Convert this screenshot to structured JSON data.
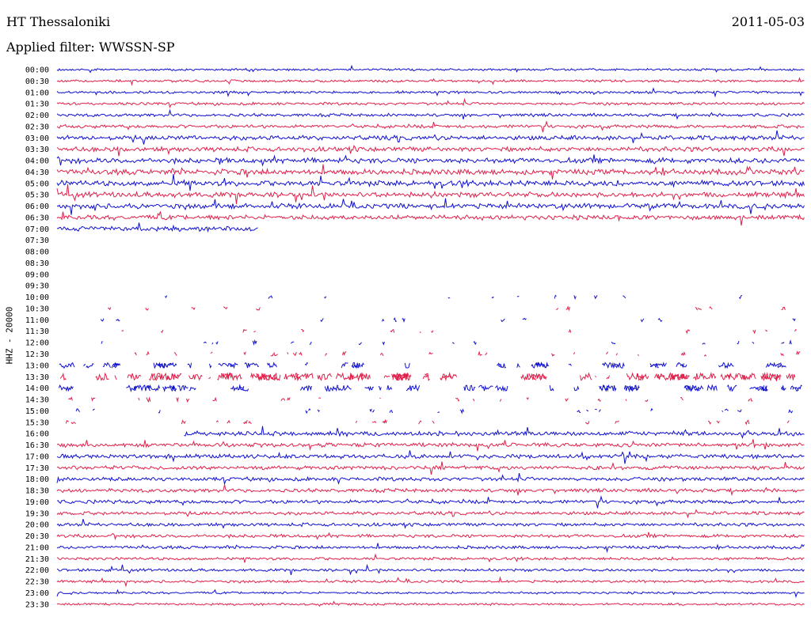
{
  "header": {
    "station": "HT Thessaloniki",
    "date": "2011-05-03",
    "filter": "Applied filter: WWSSN-SP",
    "channel": "HHZ - 20000"
  },
  "colors": {
    "even_trace": "#1010d0",
    "odd_trace": "#e0204a"
  },
  "chart_data": {
    "type": "line",
    "title": "HT Thessaloniki",
    "subtitle": "Applied filter: WWSSN-SP",
    "ylabel": "HHZ - 20000",
    "xlabel": "",
    "ylim": [
      "00:00",
      "23:30"
    ],
    "grid": false,
    "rows": [
      {
        "label": "00:00",
        "status": "continuous",
        "activity": 0.15,
        "coverage": [
          0,
          1
        ]
      },
      {
        "label": "00:30",
        "status": "continuous",
        "activity": 0.2,
        "coverage": [
          0,
          1
        ]
      },
      {
        "label": "01:00",
        "status": "continuous",
        "activity": 0.2,
        "coverage": [
          0,
          1
        ]
      },
      {
        "label": "01:30",
        "status": "continuous",
        "activity": 0.25,
        "coverage": [
          0,
          1
        ]
      },
      {
        "label": "02:00",
        "status": "continuous",
        "activity": 0.3,
        "coverage": [
          0,
          1
        ]
      },
      {
        "label": "02:30",
        "status": "continuous",
        "activity": 0.35,
        "coverage": [
          0,
          1
        ]
      },
      {
        "label": "03:00",
        "status": "continuous",
        "activity": 0.55,
        "coverage": [
          0,
          1
        ]
      },
      {
        "label": "03:30",
        "status": "continuous",
        "activity": 0.6,
        "coverage": [
          0,
          1
        ]
      },
      {
        "label": "04:00",
        "status": "continuous",
        "activity": 0.7,
        "coverage": [
          0,
          1
        ]
      },
      {
        "label": "04:30",
        "status": "continuous",
        "activity": 0.75,
        "coverage": [
          0,
          1
        ]
      },
      {
        "label": "05:00",
        "status": "continuous",
        "activity": 0.7,
        "coverage": [
          0,
          1
        ]
      },
      {
        "label": "05:30",
        "status": "continuous",
        "activity": 0.7,
        "coverage": [
          0,
          1
        ]
      },
      {
        "label": "06:00",
        "status": "continuous",
        "activity": 0.65,
        "coverage": [
          0,
          1
        ]
      },
      {
        "label": "06:30",
        "status": "continuous",
        "activity": 0.6,
        "coverage": [
          0,
          1
        ]
      },
      {
        "label": "07:00",
        "status": "partial",
        "activity": 0.6,
        "coverage": [
          0,
          0.27
        ]
      },
      {
        "label": "07:30",
        "status": "empty",
        "activity": 0,
        "coverage": [
          0,
          0
        ]
      },
      {
        "label": "08:00",
        "status": "empty",
        "activity": 0,
        "coverage": [
          0,
          0
        ]
      },
      {
        "label": "08:30",
        "status": "empty",
        "activity": 0,
        "coverage": [
          0,
          0
        ]
      },
      {
        "label": "09:00",
        "status": "empty",
        "activity": 0,
        "coverage": [
          0,
          0
        ]
      },
      {
        "label": "09:30",
        "status": "empty",
        "activity": 0,
        "coverage": [
          0,
          0
        ]
      },
      {
        "label": "10:00",
        "status": "sparse",
        "activity": 0.05,
        "coverage": [
          0,
          1
        ]
      },
      {
        "label": "10:30",
        "status": "sparse",
        "activity": 0.06,
        "coverage": [
          0,
          1
        ]
      },
      {
        "label": "11:00",
        "status": "sparse",
        "activity": 0.05,
        "coverage": [
          0,
          1
        ]
      },
      {
        "label": "11:30",
        "status": "sparse",
        "activity": 0.08,
        "coverage": [
          0,
          1
        ]
      },
      {
        "label": "12:00",
        "status": "sparse",
        "activity": 0.12,
        "coverage": [
          0,
          1
        ]
      },
      {
        "label": "12:30",
        "status": "sparse",
        "activity": 0.22,
        "coverage": [
          0,
          1
        ]
      },
      {
        "label": "13:00",
        "status": "sparse",
        "activity": 0.35,
        "coverage": [
          0,
          1
        ]
      },
      {
        "label": "13:30",
        "status": "sparse",
        "activity": 0.6,
        "coverage": [
          0,
          1
        ]
      },
      {
        "label": "14:00",
        "status": "sparse",
        "activity": 0.4,
        "coverage": [
          0,
          1
        ]
      },
      {
        "label": "14:30",
        "status": "sparse",
        "activity": 0.18,
        "coverage": [
          0,
          1
        ]
      },
      {
        "label": "15:00",
        "status": "sparse",
        "activity": 0.15,
        "coverage": [
          0,
          1
        ]
      },
      {
        "label": "15:30",
        "status": "sparse",
        "activity": 0.15,
        "coverage": [
          0,
          1
        ]
      },
      {
        "label": "16:00",
        "status": "continuous",
        "activity": 0.55,
        "coverage": [
          0.17,
          1
        ]
      },
      {
        "label": "16:30",
        "status": "continuous",
        "activity": 0.5,
        "coverage": [
          0,
          1
        ]
      },
      {
        "label": "17:00",
        "status": "continuous",
        "activity": 0.5,
        "coverage": [
          0,
          1
        ]
      },
      {
        "label": "17:30",
        "status": "continuous",
        "activity": 0.45,
        "coverage": [
          0,
          1
        ]
      },
      {
        "label": "18:00",
        "status": "continuous",
        "activity": 0.45,
        "coverage": [
          0,
          1
        ]
      },
      {
        "label": "18:30",
        "status": "continuous",
        "activity": 0.4,
        "coverage": [
          0,
          1
        ]
      },
      {
        "label": "19:00",
        "status": "continuous",
        "activity": 0.4,
        "coverage": [
          0,
          1
        ]
      },
      {
        "label": "19:30",
        "status": "continuous",
        "activity": 0.35,
        "coverage": [
          0,
          1
        ]
      },
      {
        "label": "20:00",
        "status": "continuous",
        "activity": 0.35,
        "coverage": [
          0,
          1
        ]
      },
      {
        "label": "20:30",
        "status": "continuous",
        "activity": 0.35,
        "coverage": [
          0,
          1
        ]
      },
      {
        "label": "21:00",
        "status": "continuous",
        "activity": 0.3,
        "coverage": [
          0,
          1
        ]
      },
      {
        "label": "21:30",
        "status": "continuous",
        "activity": 0.25,
        "coverage": [
          0,
          1
        ]
      },
      {
        "label": "22:00",
        "status": "continuous",
        "activity": 0.25,
        "coverage": [
          0,
          1
        ]
      },
      {
        "label": "22:30",
        "status": "continuous",
        "activity": 0.2,
        "coverage": [
          0,
          1
        ]
      },
      {
        "label": "23:00",
        "status": "continuous",
        "activity": 0.15,
        "coverage": [
          0,
          1
        ]
      },
      {
        "label": "23:30",
        "status": "continuous",
        "activity": 0.15,
        "coverage": [
          0,
          1
        ]
      }
    ]
  }
}
